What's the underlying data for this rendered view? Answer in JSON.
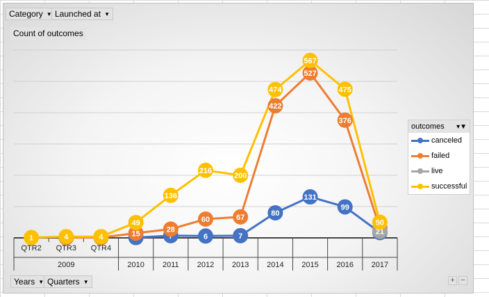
{
  "filters": {
    "category": "Category",
    "launched_at": "Launched at",
    "values": "Count of outcomes",
    "years": "Years",
    "quarters": "Quarters"
  },
  "legend": {
    "title": "outcomes",
    "items": [
      {
        "label": "canceled",
        "color": "#4472C4"
      },
      {
        "label": "failed",
        "color": "#ED7D31"
      },
      {
        "label": "live",
        "color": "#A5A5A5"
      },
      {
        "label": "successful",
        "color": "#FFC000"
      }
    ]
  },
  "zoom": {
    "plus": "+",
    "minus": "−"
  },
  "chart_data": {
    "type": "line",
    "categories": [
      "QTR2",
      "QTR3",
      "QTR4",
      "2010",
      "2011",
      "2012",
      "2013",
      "2014",
      "2015",
      "2016",
      "2017"
    ],
    "groups": [
      {
        "label": "2009",
        "count": 3
      },
      {
        "label": "2010",
        "count": 1
      },
      {
        "label": "2011",
        "count": 1
      },
      {
        "label": "2012",
        "count": 1
      },
      {
        "label": "2013",
        "count": 1
      },
      {
        "label": "2014",
        "count": 1
      },
      {
        "label": "2015",
        "count": 1
      },
      {
        "label": "2016",
        "count": 1
      },
      {
        "label": "2017",
        "count": 1
      }
    ],
    "series": [
      {
        "name": "canceled",
        "color": "#4472C4",
        "values": [
          null,
          1,
          null,
          1,
          7,
          6,
          7,
          80,
          131,
          99,
          17
        ]
      },
      {
        "name": "failed",
        "color": "#ED7D31",
        "values": [
          null,
          1,
          1,
          15,
          28,
          60,
          67,
          422,
          527,
          376,
          31
        ]
      },
      {
        "name": "live",
        "color": "#A5A5A5",
        "values": [
          null,
          null,
          null,
          null,
          null,
          null,
          null,
          null,
          null,
          null,
          21
        ]
      },
      {
        "name": "successful",
        "color": "#FFC000",
        "values": [
          1,
          4,
          4,
          49,
          136,
          216,
          200,
          474,
          567,
          475,
          50
        ]
      }
    ],
    "ylim": [
      0,
      600
    ],
    "grid": true,
    "legend_position": "right"
  }
}
